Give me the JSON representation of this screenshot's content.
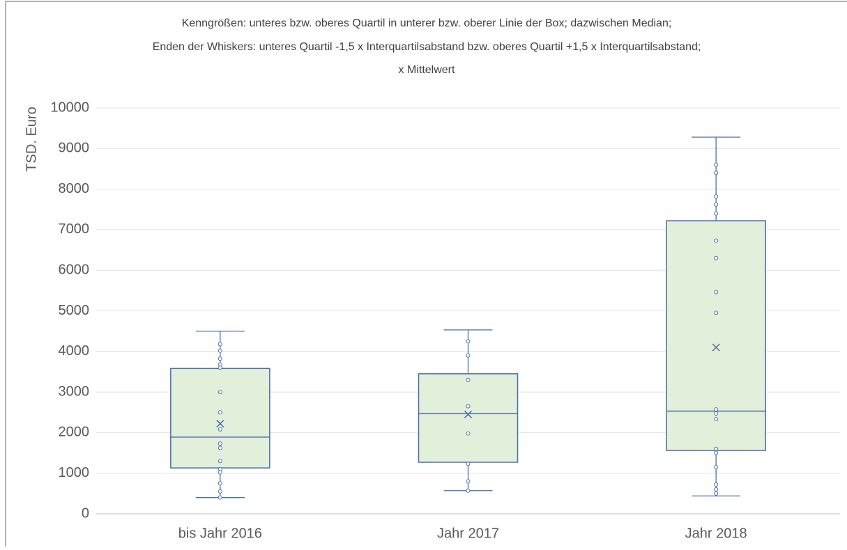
{
  "chart_data": {
    "type": "box",
    "title_lines": [
      "Kenngrößen: unteres bzw. oberes Quartil in unterer bzw. oberer Linie der Box; dazwischen Median;",
      "Enden der Whiskers: unteres Quartil -1,5 x Interquartilsabstand bzw. oberes Quartil +1,5 x Interquartilsabstand;",
      "x Mittelwert"
    ],
    "y_label": "TSD. Euro",
    "categories": [
      "bis Jahr 2016",
      "Jahr 2017",
      "Jahr 2018"
    ],
    "boxes": [
      {
        "whisker_low": 400,
        "q1": 1130,
        "median": 1890,
        "q3": 3580,
        "whisker_high": 4500,
        "mean": 2220,
        "points": [
          4180,
          4020,
          3820,
          3680,
          3600,
          3000,
          2500,
          2080,
          1730,
          1620,
          1300,
          1100,
          1020,
          750,
          550,
          400
        ]
      },
      {
        "whisker_low": 570,
        "q1": 1270,
        "median": 2470,
        "q3": 3450,
        "whisker_high": 4530,
        "mean": 2450,
        "points": [
          4250,
          3900,
          3300,
          2650,
          1980,
          1230,
          800,
          570
        ]
      },
      {
        "whisker_low": 440,
        "q1": 1560,
        "median": 2530,
        "q3": 7220,
        "whisker_high": 9280,
        "mean": 4100,
        "points": [
          8600,
          8400,
          7820,
          7620,
          7400,
          6730,
          6300,
          5460,
          4950,
          2570,
          2470,
          2330,
          1600,
          1500,
          1150,
          720,
          600,
          500
        ]
      }
    ],
    "box_color": "#e2efda",
    "line_color": "#4a6ea8",
    "ylim": [
      0,
      10000
    ],
    "yticks": [
      0,
      1000,
      2000,
      3000,
      4000,
      5000,
      6000,
      7000,
      8000,
      9000,
      10000
    ],
    "grid": true
  }
}
